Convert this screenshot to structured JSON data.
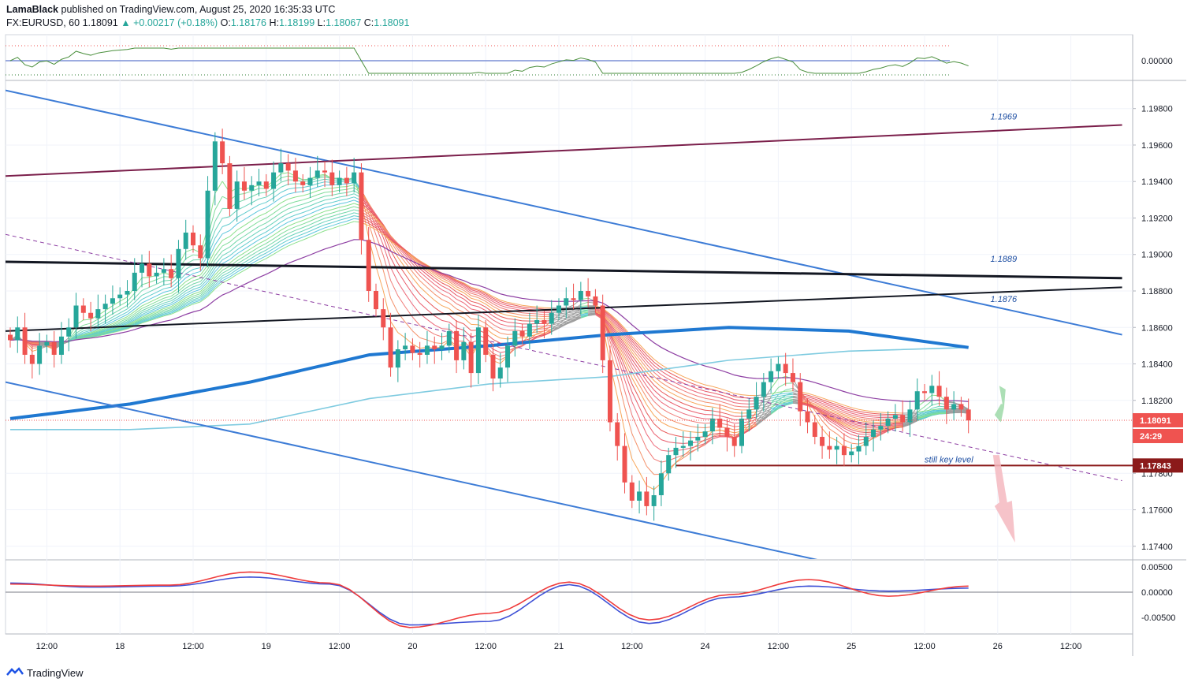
{
  "header": {
    "author": "LamaBlack",
    "published_text": "published on TradingView.com, August 25, 2020 16:35:33 UTC",
    "symbol": "FX:EURUSD, 60",
    "last": "1.18091",
    "arrow": "▲",
    "change": "+0.00217 (+0.18%)",
    "open_label": "O:",
    "open": "1.18176",
    "high_label": "H:",
    "high": "1.18199",
    "low_label": "L:",
    "low": "1.18067",
    "close_label": "C:",
    "close": "1.18091"
  },
  "footer": {
    "brand": "TradingView"
  },
  "colors": {
    "up": "#26a69a",
    "down": "#ef5350",
    "channel": "#3d7cd6",
    "maroon": "#7b1f4b",
    "black": "#131722",
    "ema_blue": "#1f78d1",
    "ema_light": "#7fcbe0",
    "purple": "#8e3fa3",
    "support": "#8b1a1a",
    "macd": "#3f51d6",
    "signal": "#ef3b3b"
  },
  "chart_data": {
    "type": "line",
    "title": "FX:EURUSD, 60",
    "x_ticks": [
      "12:00",
      "18",
      "12:00",
      "19",
      "12:00",
      "20",
      "12:00",
      "21",
      "12:00",
      "24",
      "12:00",
      "25",
      "12:00",
      "26",
      "12:00"
    ],
    "y_ticks": [
      "1.19800",
      "1.19600",
      "1.19400",
      "1.19200",
      "1.19000",
      "1.18800",
      "1.18600",
      "1.18400",
      "1.18200",
      "1.17800",
      "1.17600",
      "1.17400"
    ],
    "ylim": [
      1.1733,
      1.1995
    ],
    "price_label": "1.18091",
    "countdown": "24:29",
    "support_label": "1.17843",
    "support_level": 1.17843,
    "annotations": [
      {
        "text": "1.1969",
        "x_bar": 134,
        "y": 1.1974
      },
      {
        "text": "1.1889",
        "x_bar": 134,
        "y": 1.1896
      },
      {
        "text": "1.1876",
        "x_bar": 134,
        "y": 1.1874
      },
      {
        "text": "still key level",
        "x_bar": 125,
        "y": 1.1786
      }
    ],
    "trendlines": [
      {
        "name": "channel-upper",
        "from": [
          0,
          1.199
        ],
        "to": [
          152,
          1.1856
        ]
      },
      {
        "name": "channel-lower",
        "from": [
          0,
          1.183
        ],
        "to": [
          111,
          1.1732
        ]
      },
      {
        "name": "maroon-line",
        "from": [
          0,
          1.1943
        ],
        "to": [
          152,
          1.1971
        ]
      },
      {
        "name": "black-horizontal",
        "from": [
          0,
          1.1896
        ],
        "to": [
          152,
          1.1887
        ]
      },
      {
        "name": "black-rising",
        "from": [
          0,
          1.1858
        ],
        "to": [
          152,
          1.1882
        ]
      },
      {
        "name": "dashed-purple",
        "from": [
          0,
          1.1911
        ],
        "to": [
          152,
          1.1776
        ]
      }
    ],
    "series": [
      {
        "name": "EURUSD close",
        "style": "candles",
        "values": [
          1.1853,
          1.186,
          1.1845,
          1.184,
          1.185,
          1.1852,
          1.1845,
          1.1855,
          1.186,
          1.1872,
          1.1868,
          1.1865,
          1.187,
          1.1873,
          1.1876,
          1.1878,
          1.188,
          1.189,
          1.1895,
          1.1888,
          1.189,
          1.1892,
          1.1887,
          1.1903,
          1.1912,
          1.1905,
          1.1898,
          1.1935,
          1.1962,
          1.195,
          1.1925,
          1.194,
          1.1935,
          1.1938,
          1.194,
          1.1936,
          1.1945,
          1.195,
          1.1946,
          1.194,
          1.1938,
          1.1942,
          1.1946,
          1.1945,
          1.1938,
          1.1942,
          1.1939,
          1.1945,
          1.1908,
          1.188,
          1.187,
          1.186,
          1.1838,
          1.1848,
          1.185,
          1.1846,
          1.1845,
          1.185,
          1.1848,
          1.185,
          1.1858,
          1.1842,
          1.1852,
          1.1835,
          1.186,
          1.1845,
          1.1832,
          1.1838,
          1.185,
          1.1858,
          1.1855,
          1.1862,
          1.1864,
          1.1862,
          1.1868,
          1.1872,
          1.1876,
          1.1875,
          1.188,
          1.1877,
          1.1872,
          1.1842,
          1.1808,
          1.1795,
          1.1775,
          1.1765,
          1.177,
          1.1762,
          1.1768,
          1.178,
          1.179,
          1.1794,
          1.1795,
          1.1798,
          1.18,
          1.1803,
          1.181,
          1.1805,
          1.18,
          1.1795,
          1.181,
          1.1815,
          1.1822,
          1.183,
          1.1836,
          1.184,
          1.1835,
          1.183,
          1.1814,
          1.1808,
          1.18,
          1.1795,
          1.1793,
          1.1795,
          1.179,
          1.1792,
          1.1795,
          1.18,
          1.1804,
          1.1806,
          1.181,
          1.1812,
          1.1808,
          1.1815,
          1.1825,
          1.1824,
          1.1828,
          1.1822,
          1.1815,
          1.1818,
          1.1815,
          1.1809
        ]
      },
      {
        "name": "EMA 200",
        "values": [
          1.181,
          1.1818,
          1.183,
          1.1845,
          1.185,
          1.1856,
          1.186,
          1.1858,
          1.1849
        ]
      },
      {
        "name": "EMA 100",
        "values": [
          1.1804,
          1.1804,
          1.1807,
          1.1821,
          1.1829,
          1.1833,
          1.1842,
          1.1847,
          1.1849
        ]
      },
      {
        "name": "Oscillator MACD",
        "values": [
          0.0018,
          0.001,
          0.0012,
          0.003,
          0.0016,
          -0.0065,
          -0.0058,
          0.0015,
          -0.0062,
          -0.001,
          0.0012,
          0.0002,
          0.0008
        ]
      },
      {
        "name": "Oscillator signal",
        "values": [
          0.0016,
          0.0012,
          0.0014,
          0.004,
          0.0018,
          -0.007,
          -0.0042,
          0.002,
          -0.0055,
          -0.0005,
          0.0025,
          -0.0008,
          0.0012
        ]
      }
    ],
    "top_panel_value": "0.00000",
    "osc_ticks": [
      "0.00500",
      "0.00000",
      "-0.00500"
    ]
  }
}
